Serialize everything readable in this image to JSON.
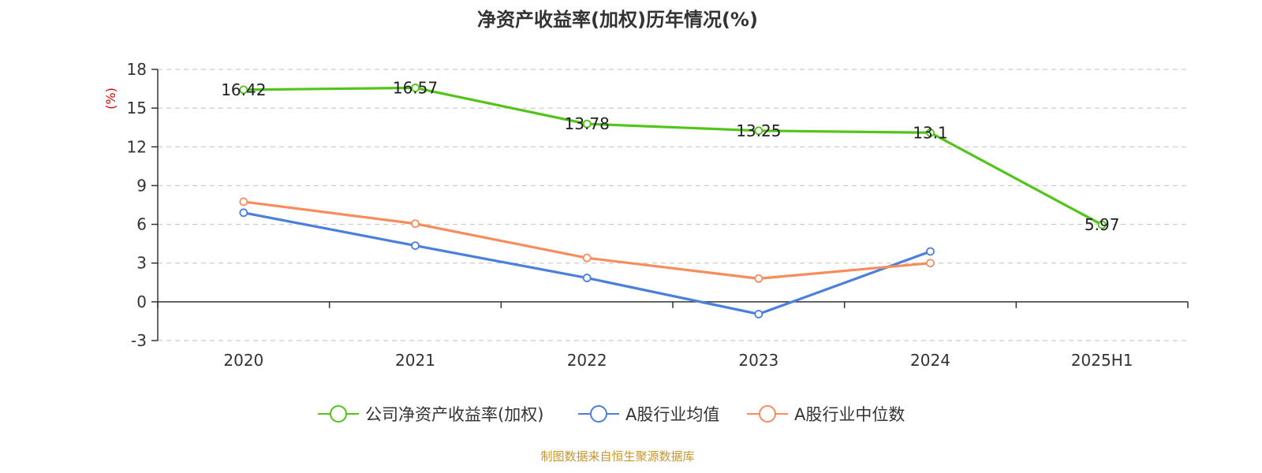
{
  "chart_data": {
    "type": "line",
    "title": "净资产收益率(加权)历年情况(%)",
    "ylabel": "(%)",
    "categories": [
      "2020",
      "2021",
      "2022",
      "2023",
      "2024",
      "2025H1"
    ],
    "yticks": [
      "18",
      "15",
      "12",
      "9",
      "6",
      "3",
      "0",
      "-3"
    ],
    "ylim": [
      -3,
      18
    ],
    "grid": true,
    "legend_position": "bottom",
    "series": [
      {
        "name": "公司净资产收益率(加权)",
        "color": "#52c41a",
        "values": [
          16.42,
          16.57,
          13.78,
          13.25,
          13.1,
          5.97
        ],
        "labels": [
          "16.42",
          "16.57",
          "13.78",
          "13.25",
          "13.1",
          "5.97"
        ]
      },
      {
        "name": "A股行业均值",
        "color": "#4a7fdc",
        "values": [
          6.9,
          4.35,
          1.85,
          -0.95,
          3.9,
          null
        ]
      },
      {
        "name": "A股行业中位数",
        "color": "#f78c5c",
        "values": [
          7.75,
          6.05,
          3.4,
          1.8,
          3.0,
          null
        ]
      }
    ]
  },
  "colors": {
    "unit_label": "#e00000",
    "source": "#c8962a"
  },
  "source": "制图数据来自恒生聚源数据库"
}
